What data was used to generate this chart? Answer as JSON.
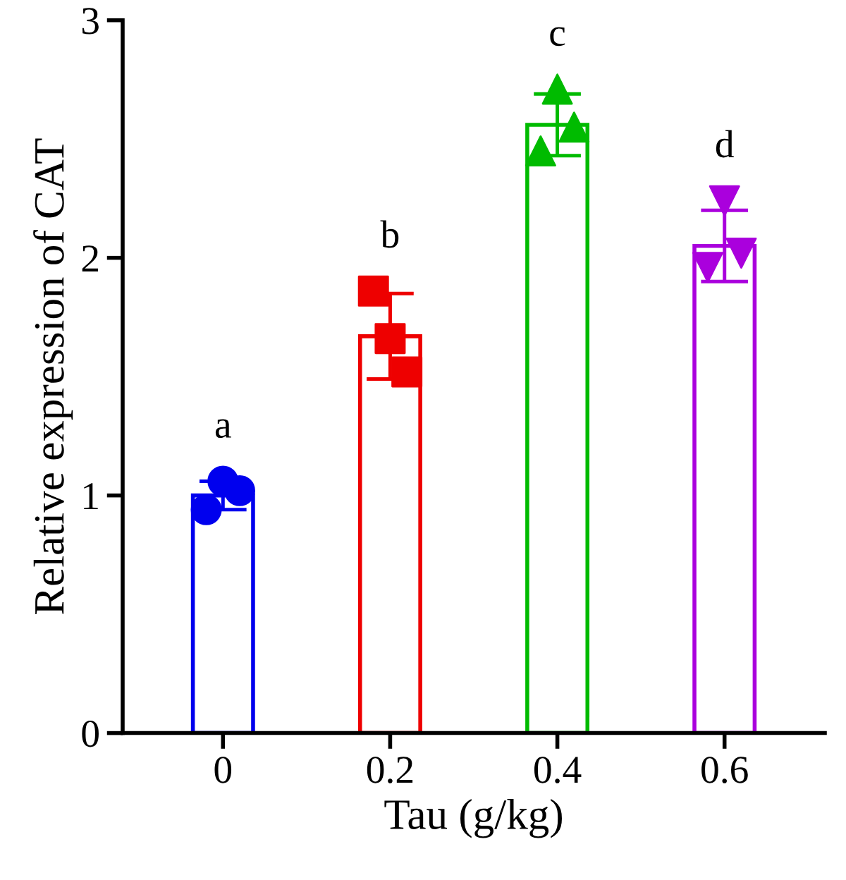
{
  "chart_data": {
    "type": "bar",
    "xlabel": "Tau (g/kg)",
    "ylabel": "Relative expression of CAT",
    "categories": [
      "0",
      "0.2",
      "0.4",
      "0.6"
    ],
    "ylim": [
      0,
      3
    ],
    "yticks": [
      0,
      1,
      2,
      3
    ],
    "grid": false,
    "legend": false,
    "series": [
      {
        "colors": [
          "#0000ee",
          "#ee0000",
          "#00bb00",
          "#aa00dd"
        ],
        "values": [
          1.0,
          1.67,
          2.56,
          2.05
        ],
        "errors": [
          0.06,
          0.18,
          0.13,
          0.15
        ]
      },
      {
        "type": "scatter",
        "marker": "circle",
        "color": "#0000ee",
        "x": [
          "0",
          "0",
          "0"
        ],
        "values": [
          0.94,
          1.06,
          1.02
        ]
      },
      {
        "type": "scatter",
        "marker": "square",
        "color": "#ee0000",
        "x": [
          "0.2",
          "0.2",
          "0.2"
        ],
        "values": [
          1.86,
          1.66,
          1.52
        ]
      },
      {
        "type": "scatter",
        "marker": "triangle",
        "color": "#00bb00",
        "x": [
          "0.4",
          "0.4",
          "0.4"
        ],
        "values": [
          2.45,
          2.71,
          2.55
        ]
      },
      {
        "type": "scatter",
        "marker": "triangle_down",
        "color": "#aa00dd",
        "x": [
          "0.6",
          "0.6",
          "0.6"
        ],
        "values": [
          1.96,
          2.24,
          2.02
        ]
      }
    ],
    "annotations": [
      {
        "text": "a",
        "x": "0",
        "y": 1.06
      },
      {
        "text": "b",
        "x": "0.2",
        "y": 1.86
      },
      {
        "text": "c",
        "x": "0.4",
        "y": 2.71
      },
      {
        "text": "d",
        "x": "0.6",
        "y": 2.24
      }
    ]
  }
}
